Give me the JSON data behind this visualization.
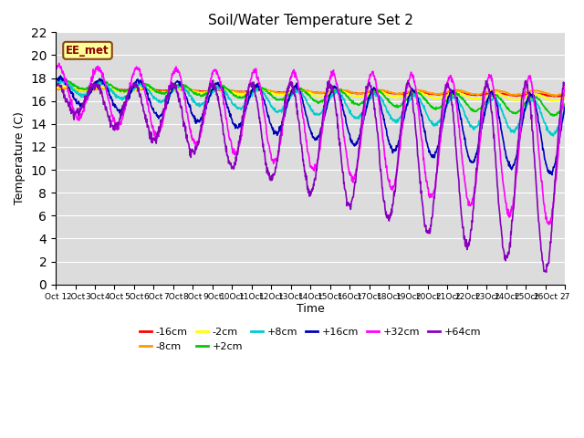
{
  "title": "Soil/Water Temperature Set 2",
  "xlabel": "Time",
  "ylabel": "Temperature (C)",
  "ylim": [
    0,
    22
  ],
  "yticks": [
    0,
    2,
    4,
    6,
    8,
    10,
    12,
    14,
    16,
    18,
    20,
    22
  ],
  "x_tick_labels": [
    "Oct 1",
    "2Oct",
    "3Oct",
    "4Oct",
    "5Oct",
    "6Oct",
    "7Oct",
    "8Oct",
    "9Oct",
    "10Oct",
    "11Oct",
    "12Oct",
    "13Oct",
    "14Oct",
    "15Oct",
    "16Oct",
    "17Oct",
    "18Oct",
    "19Oct",
    "20Oct",
    "21Oct",
    "22Oct",
    "23Oct",
    "24Oct",
    "25Oct",
    "26Oct",
    "27"
  ],
  "series_order": [
    "-16cm",
    "-8cm",
    "-2cm",
    "+2cm",
    "+8cm",
    "+16cm",
    "+32cm",
    "+64cm"
  ],
  "series_colors": {
    "-16cm": "#ff0000",
    "-8cm": "#ff9900",
    "-2cm": "#ffff00",
    "+2cm": "#00cc00",
    "+8cm": "#00cccc",
    "+16cm": "#0000bb",
    "+32cm": "#ff00ff",
    "+64cm": "#8800bb"
  },
  "linewidth": 1.2,
  "annotation_text": "EE_met",
  "bg_color": "#dcdcdc",
  "grid_color": "#ffffff",
  "legend_ncol": 6,
  "legend_fontsize": 8
}
